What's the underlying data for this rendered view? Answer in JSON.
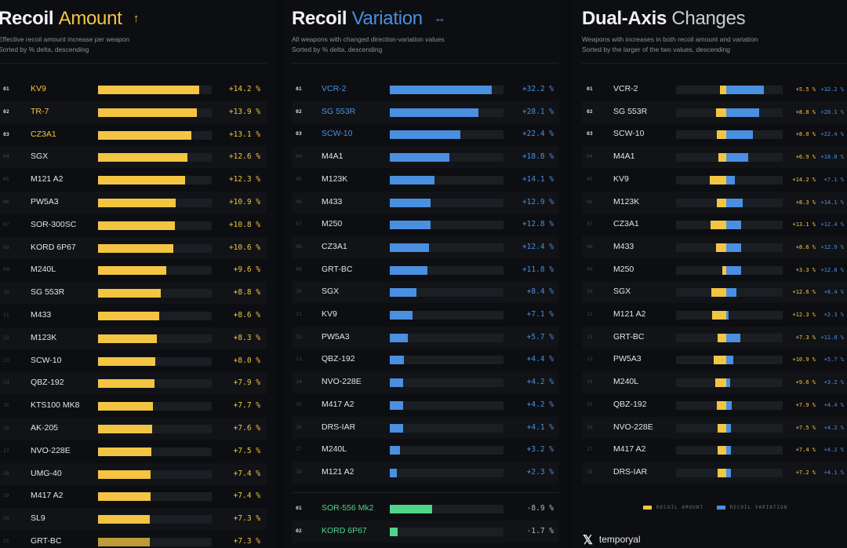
{
  "colors": {
    "amount": "#f4c542",
    "variation": "#4a8fe0",
    "negative": "#4fd58a",
    "track": "#1b1e23"
  },
  "panels": [
    {
      "title_bold": "Recoil",
      "title_light": "Amount",
      "title_icon": "↑",
      "subtitle1": "Effective recoil amount increase per weapon",
      "subtitle2": "Sorted by % delta, descending"
    },
    {
      "title_bold": "Recoil",
      "title_light": "Variation",
      "title_icon": "↔",
      "subtitle1": "All weapons with changed direction-variation values",
      "subtitle2": "Sorted by % delta, descending"
    },
    {
      "title_bold": "Dual-Axis",
      "title_light": "Changes",
      "title_icon": "",
      "subtitle1": "Weapons with increases in both recoil amount and variation",
      "subtitle2": "Sorted by the larger of the two values, descending"
    }
  ],
  "legend": {
    "amount_label": "RECOIL AMOUNT",
    "variation_label": "RECOIL VARIATION"
  },
  "brand": {
    "icon": "x-logo-icon",
    "name": "temporyal"
  },
  "chart_data": [
    {
      "type": "bar",
      "title": "Recoil Amount",
      "unit": "%",
      "categories": [
        "KV9",
        "TR-7",
        "CZ3A1",
        "SGX",
        "M121 A2",
        "PW5A3",
        "SOR-300SC",
        "KORD 6P67",
        "M240L",
        "SG 553R",
        "M433",
        "M123K",
        "SCW-10",
        "QBZ-192",
        "KTS100 MK8",
        "AK-205",
        "NVO-228E",
        "UMG-40",
        "M417 A2",
        "SL9",
        "GRT-BC"
      ],
      "ranks": [
        "01",
        "02",
        "03",
        "04",
        "05",
        "06",
        "07",
        "08",
        "09",
        "10",
        "11",
        "12",
        "13",
        "14",
        "15",
        "16",
        "17",
        "18",
        "19",
        "20",
        "21"
      ],
      "values": [
        14.2,
        13.9,
        13.1,
        12.6,
        12.3,
        10.9,
        10.8,
        10.6,
        9.6,
        8.8,
        8.6,
        8.3,
        8.0,
        7.9,
        7.7,
        7.6,
        7.5,
        7.4,
        7.4,
        7.3,
        7.3
      ],
      "labels": [
        "+14.2",
        "+13.9",
        "+13.1",
        "+12.6",
        "+12.3",
        "+10.9",
        "+10.8",
        "+10.6",
        "+9.6",
        "+8.8",
        "+8.6",
        "+8.3",
        "+8.0",
        "+7.9",
        "+7.7",
        "+7.6",
        "+7.5",
        "+7.4",
        "+7.4",
        "+7.3",
        "+7.3"
      ],
      "xlim": [
        0,
        16
      ]
    },
    {
      "type": "bar",
      "title": "Recoil Variation",
      "unit": "%",
      "categories": [
        "VCR-2",
        "SG 553R",
        "SCW-10",
        "M4A1",
        "M123K",
        "M433",
        "M250",
        "CZ3A1",
        "GRT-BC",
        "SGX",
        "KV9",
        "PW5A3",
        "QBZ-192",
        "NVO-228E",
        "M417 A2",
        "DRS-IAR",
        "M240L",
        "M121 A2"
      ],
      "ranks": [
        "01",
        "02",
        "03",
        "04",
        "05",
        "06",
        "07",
        "08",
        "09",
        "10",
        "11",
        "12",
        "13",
        "14",
        "15",
        "16",
        "17",
        "18"
      ],
      "values": [
        32.2,
        28.1,
        22.4,
        18.8,
        14.1,
        12.9,
        12.8,
        12.4,
        11.8,
        8.4,
        7.1,
        5.7,
        4.4,
        4.2,
        4.2,
        4.1,
        3.2,
        2.3
      ],
      "labels": [
        "+32.2",
        "+28.1",
        "+22.4",
        "+18.8",
        "+14.1",
        "+12.9",
        "+12.8",
        "+12.4",
        "+11.8",
        "+8.4",
        "+7.1",
        "+5.7",
        "+4.4",
        "+4.2",
        "+4.2",
        "+4.1",
        "+3.2",
        "+2.3"
      ],
      "negative": {
        "categories": [
          "SOR-556 Mk2",
          "KORD 6P67"
        ],
        "ranks": [
          "01",
          "02"
        ],
        "values": [
          -8.9,
          -1.7
        ],
        "labels": [
          "-8.9",
          "-1.7"
        ]
      },
      "xlim": [
        0,
        36
      ]
    },
    {
      "type": "bar",
      "title": "Dual-Axis Changes",
      "unit": "%",
      "categories": [
        "VCR-2",
        "SG 553R",
        "SCW-10",
        "M4A1",
        "KV9",
        "M123K",
        "CZ3A1",
        "M433",
        "M250",
        "SGX",
        "M121 A2",
        "GRT-BC",
        "PW5A3",
        "M240L",
        "QBZ-192",
        "NVO-228E",
        "M417 A2",
        "DRS-IAR"
      ],
      "ranks": [
        "01",
        "02",
        "03",
        "04",
        "05",
        "06",
        "07",
        "08",
        "09",
        "10",
        "11",
        "12",
        "13",
        "14",
        "15",
        "16",
        "17",
        "18"
      ],
      "series": [
        {
          "name": "RECOIL AMOUNT",
          "values": [
            5.5,
            8.8,
            8.0,
            6.9,
            14.2,
            8.3,
            13.1,
            8.6,
            3.3,
            12.6,
            12.3,
            7.3,
            10.9,
            9.6,
            7.9,
            7.5,
            7.4,
            7.2
          ],
          "labels": [
            "+5.5",
            "+8.8",
            "+8.0",
            "+6.9",
            "+14.2",
            "+8.3",
            "+13.1",
            "+8.6",
            "+3.3",
            "+12.6",
            "+12.3",
            "+7.3",
            "+10.9",
            "+9.6",
            "+7.9",
            "+7.5",
            "+7.4",
            "+7.2"
          ]
        },
        {
          "name": "RECOIL VARIATION",
          "values": [
            32.2,
            28.1,
            22.4,
            18.8,
            7.1,
            14.1,
            12.4,
            12.9,
            12.8,
            8.4,
            2.3,
            11.8,
            5.7,
            3.2,
            4.4,
            4.2,
            4.2,
            4.1
          ],
          "labels": [
            "+32.2",
            "+28.1",
            "+22.4",
            "+18.8",
            "+7.1",
            "+14.1",
            "+12.4",
            "+12.9",
            "+12.8",
            "+8.4",
            "+2.3",
            "+11.8",
            "+5.7",
            "+3.2",
            "+4.4",
            "+4.2",
            "+4.2",
            "+4.1"
          ]
        }
      ],
      "xlim": [
        -20,
        36
      ]
    }
  ]
}
